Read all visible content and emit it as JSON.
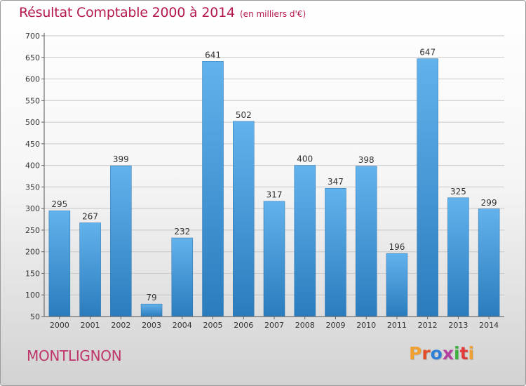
{
  "header": {
    "title": "Résultat Comptable 2000 à 2014",
    "subtitle": "(en milliers d'€)"
  },
  "footer": {
    "city": "MONTLIGNON",
    "logo_text": "Proxiti"
  },
  "colors": {
    "title": "#b5184f",
    "bar_light": "#62b2ec",
    "bar_dark": "#2a7cbd",
    "logo_letters": [
      "#f0a030",
      "#e04f2a",
      "#2f7fd6",
      "#b540a0",
      "#40b040",
      "#e03a3a",
      "#f0a030"
    ]
  },
  "chart_data": {
    "type": "bar",
    "title": "Résultat Comptable 2000 à 2014",
    "subtitle": "(en milliers d'€)",
    "categories": [
      "2000",
      "2001",
      "2002",
      "2003",
      "2004",
      "2005",
      "2006",
      "2007",
      "2008",
      "2009",
      "2010",
      "2011",
      "2012",
      "2013",
      "2014"
    ],
    "values": [
      295,
      267,
      399,
      79,
      232,
      641,
      502,
      317,
      400,
      347,
      398,
      196,
      647,
      325,
      299
    ],
    "ylim": [
      50,
      700
    ],
    "yticks": [
      50,
      100,
      150,
      200,
      250,
      300,
      350,
      400,
      450,
      500,
      550,
      600,
      650,
      700
    ],
    "grid": true,
    "legend": "none",
    "xlabel": "",
    "ylabel": ""
  }
}
